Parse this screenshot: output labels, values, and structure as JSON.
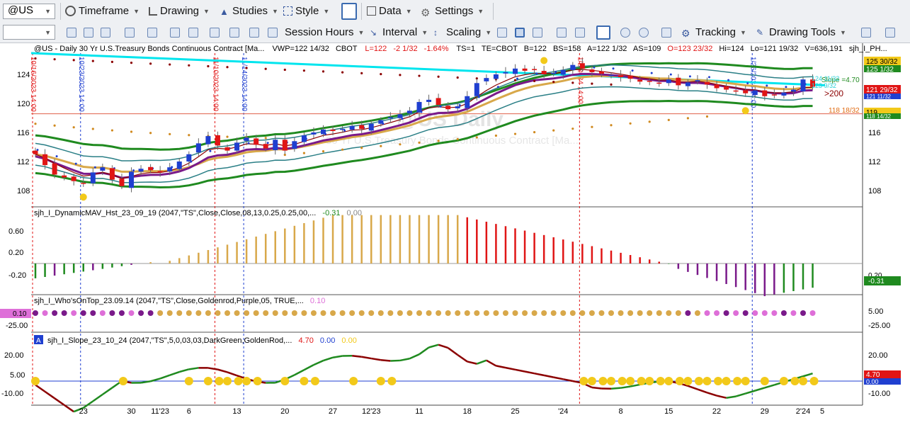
{
  "toolbar": {
    "symbol": "@US",
    "timeframe": "Timeframe",
    "drawing": "Drawing",
    "studies": "Studies",
    "style": "Style",
    "data": "Data",
    "settings": "Settings",
    "session_hours": "Session Hours",
    "interval": "Interval",
    "scaling": "Scaling",
    "tracking": "Tracking",
    "drawing_tools": "Drawing Tools"
  },
  "colors": {
    "up": "#1f3fd0",
    "down": "#e01515",
    "green": "#1f8a1f",
    "teal": "#2a7f86",
    "gold": "#d8a84a",
    "purple": "#7a1a8a",
    "maroon": "#8b0000",
    "cyan": "#00e5ee",
    "yellow": "#f2c91a",
    "violet": "#de6fd8"
  },
  "header": {
    "title": "@US - Daily  30 Yr U.S.Treasury Bonds Continuous Contract [Ma...",
    "vwp": "VWP=122 14/32",
    "exch": "CBOT",
    "l": "L=122",
    "chg": "-2 1/32",
    "pct": "-1.64%",
    "ts": "TS=1",
    "te": "TE=CBOT",
    "b": "B=122",
    "bs": "BS=158",
    "a": "A=122 1/32",
    "as": "AS=109",
    "o": "O=123 23/32",
    "hi": "Hi=124",
    "lo": "Lo=121 19/32",
    "v": "V=636,191",
    "extra": "sjh_I_PH..."
  },
  "watermark": {
    "line1": "@US Daily",
    "line2": "30 Yr U.S.Treasury Bonds Continuous Contract [Ma..."
  },
  "x_labels": [
    "23",
    "30",
    "11'23",
    "6",
    "13",
    "20",
    "27",
    "12'23",
    "11",
    "18",
    "25",
    "'24",
    "8",
    "15",
    "22",
    "29",
    "2'24",
    "5"
  ],
  "vlines": [
    {
      "color": "#e01515",
      "label": "10/16/2023 14:00"
    },
    {
      "color": "#1f3fd0",
      "label": "10/23/2023 14:00"
    },
    {
      "color": "#e01515",
      "label": "11/10/2023 14:00"
    },
    {
      "color": "#1f3fd0",
      "label": "11/14/2023 14:00"
    },
    {
      "color": "#e01515",
      "label": "1/2/2024 14:00"
    },
    {
      "color": "#1f3fd0",
      "label": "1/26/2024 14:00"
    }
  ],
  "right_labels": {
    "price_ticks": [
      "124",
      "120",
      "116",
      "112",
      "108"
    ],
    "p1": "125 30/32",
    "p2": "125 1/32",
    "slope": "Slope =4.70",
    "p3": "124 11/32",
    "p4": "123 9/32",
    "p5": ">200",
    "p6": "121 29/32",
    "p7": "121 11/32",
    "p8": "118 18/32",
    "p9": "119",
    "p10": "118 14/32",
    "hist_val": "-0.31",
    "hist_zero": "0.20",
    "wot_hi": "5.00",
    "wot_lo": "-25.00",
    "slope_hi": "20.00",
    "slope_lo": "-10.00",
    "slope_val": "4.70",
    "slope_val2": "0.00"
  },
  "panel2": {
    "title": "sjh_I_DynamicMAV_Hst_23_09_19 (2047,\"TS\",Close,Close,08,13,0.25,0.25,00,...",
    "v1": "-0.31",
    "v2": "0.00",
    "ticks": [
      "0.60",
      "0.20",
      "-0.20"
    ]
  },
  "panel3": {
    "title": "sjh_I_Who'sOnTop_23.09.14 (2047,\"TS\",Close,Goldenrod,Purple,05,  TRUE,...",
    "v1": "0.10",
    "left_val": "0.10",
    "ticks": [
      "-25.00"
    ]
  },
  "panel4": {
    "badge": "A",
    "title": "sjh_I_Slope_23_10_24 (2047,\"TS\",5,0,03,03,DarkGreen,GoldenRod,...",
    "v1": "4.70",
    "v2": "0.00",
    "v3": "0.00",
    "ticks": [
      "20.00",
      "5.00",
      "-10.00"
    ]
  },
  "chart_data": {
    "type": "candlestick",
    "title": "@US - Daily  30 Yr U.S.Treasury Bonds Continuous Contract [Ma...",
    "ylim": [
      105.5,
      127.5
    ],
    "closes": [
      113,
      111.5,
      110.2,
      109.8,
      109.3,
      109,
      110.5,
      111.2,
      109.5,
      108.6,
      110.6,
      111,
      110.8,
      110.5,
      111.2,
      112,
      113,
      114.5,
      115.5,
      114.2,
      113.5,
      114.6,
      115.3,
      114.3,
      113.8,
      115,
      113.5,
      114.8,
      115.6,
      116,
      116.4,
      116.2,
      116.5,
      116.9,
      116.5,
      117.2,
      117.7,
      118.1,
      118.5,
      119,
      120.2,
      120.5,
      119.8,
      119.2,
      119.6,
      121,
      122.8,
      123.5,
      124,
      124.3,
      124.8,
      124.5,
      124.6,
      124,
      124.2,
      124.6,
      125.3,
      124.8,
      124.3,
      124.1,
      123.9,
      123.6,
      123.4,
      123,
      123.1,
      122.8,
      123.3,
      122.5,
      122.9,
      123.2,
      122.6,
      122.1,
      121.9,
      121.7,
      121.4,
      121.8,
      121,
      121.2,
      121.5,
      121.9,
      123.3,
      122.3
    ]
  }
}
